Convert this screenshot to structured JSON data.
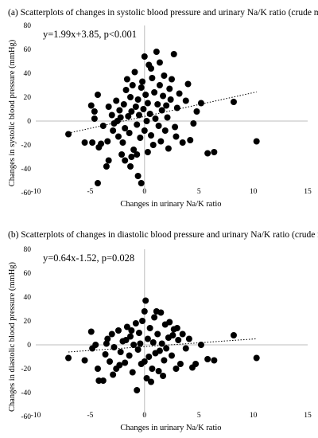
{
  "chart_data": [
    {
      "type": "scatter",
      "title": "(a) Scatterplots of changes in systolic blood pressure and urinary Na/K ratio (crude model).",
      "xlabel": "Changes in urinary Na/K ratio",
      "ylabel": "Changes in systolic blood pressure (mmHg)",
      "xlim": [
        -10,
        15
      ],
      "ylim": [
        -60,
        80
      ],
      "xticks": [
        "-10",
        "-5",
        "0",
        "5",
        "10",
        "15"
      ],
      "yticks": [
        "-60",
        "-40",
        "-20",
        "0",
        "20",
        "40",
        "60",
        "80"
      ],
      "annotation": "y=1.99x+3.85, p<0.001",
      "trendline": {
        "slope": 1.99,
        "intercept": 3.85,
        "x_range": [
          -7,
          10.3
        ],
        "style": "dotted"
      },
      "grid": false,
      "points": [
        [
          -7.0,
          -11
        ],
        [
          -5.5,
          -18
        ],
        [
          -4.8,
          -18
        ],
        [
          -4.9,
          13
        ],
        [
          -4.6,
          8
        ],
        [
          -4.3,
          22
        ],
        [
          -4.3,
          -52
        ],
        [
          -4.6,
          2
        ],
        [
          -4.2,
          -22
        ],
        [
          -4.0,
          -19
        ],
        [
          -3.5,
          -38
        ],
        [
          -3.3,
          -33
        ],
        [
          -3.4,
          -17
        ],
        [
          -3.3,
          12
        ],
        [
          -3.0,
          5
        ],
        [
          -2.9,
          -8
        ],
        [
          -2.8,
          -2
        ],
        [
          -2.6,
          17
        ],
        [
          -2.4,
          -13
        ],
        [
          -2.3,
          9
        ],
        [
          -2.2,
          3
        ],
        [
          -2.1,
          -28
        ],
        [
          -2.0,
          -18
        ],
        [
          -1.9,
          14
        ],
        [
          -1.8,
          -6
        ],
        [
          -1.7,
          26
        ],
        [
          -1.6,
          35
        ],
        [
          -1.5,
          4
        ],
        [
          -1.4,
          -10
        ],
        [
          -1.3,
          20
        ],
        [
          -1.3,
          -38
        ],
        [
          -1.2,
          8
        ],
        [
          -1.1,
          30
        ],
        [
          -1.0,
          -24
        ],
        [
          -0.9,
          41
        ],
        [
          -0.8,
          12
        ],
        [
          -0.7,
          -3
        ],
        [
          -0.6,
          -46
        ],
        [
          -0.6,
          18
        ],
        [
          -0.5,
          5
        ],
        [
          -0.4,
          -14
        ],
        [
          -0.3,
          28
        ],
        [
          -0.3,
          -52
        ],
        [
          -0.2,
          33
        ],
        [
          -0.1,
          10
        ],
        [
          0.0,
          54
        ],
        [
          0.0,
          -8
        ],
        [
          0.1,
          22
        ],
        [
          0.2,
          0
        ],
        [
          0.3,
          15
        ],
        [
          0.3,
          -26
        ],
        [
          0.4,
          47
        ],
        [
          0.5,
          6
        ],
        [
          0.6,
          -12
        ],
        [
          0.7,
          36
        ],
        [
          0.8,
          -20
        ],
        [
          0.9,
          24
        ],
        [
          1.0,
          2
        ],
        [
          1.1,
          58
        ],
        [
          1.2,
          14
        ],
        [
          1.3,
          -4
        ],
        [
          1.4,
          30
        ],
        [
          1.5,
          -17
        ],
        [
          1.6,
          9
        ],
        [
          1.7,
          21
        ],
        [
          1.8,
          38
        ],
        [
          1.9,
          -8
        ],
        [
          2.0,
          13
        ],
        [
          2.1,
          3
        ],
        [
          2.2,
          -23
        ],
        [
          2.3,
          27
        ],
        [
          2.4,
          18
        ],
        [
          2.5,
          35
        ],
        [
          2.7,
          56
        ],
        [
          2.8,
          -5
        ],
        [
          3.0,
          11
        ],
        [
          3.2,
          23
        ],
        [
          3.5,
          -18
        ],
        [
          3.8,
          17
        ],
        [
          4.0,
          31
        ],
        [
          4.2,
          -16
        ],
        [
          4.5,
          -2
        ],
        [
          4.8,
          8
        ],
        [
          5.2,
          15
        ],
        [
          5.8,
          -27
        ],
        [
          6.4,
          -26
        ],
        [
          8.2,
          16
        ],
        [
          10.3,
          -17
        ],
        [
          -2.5,
          0
        ],
        [
          -1.8,
          -33
        ],
        [
          -0.7,
          -28
        ],
        [
          0.6,
          44
        ],
        [
          1.4,
          49
        ],
        [
          -1.2,
          -30
        ],
        [
          2.9,
          -13
        ],
        [
          -3.8,
          -4
        ]
      ]
    },
    {
      "type": "scatter",
      "title": "(b) Scatterplots of changes in diastolic blood pressure and urinary Na/K ratio (crude model).",
      "xlabel": "Changes in urinary Na/K ratio",
      "ylabel": "Changes in diastolic blood pressure (mmHg)",
      "xlim": [
        -10,
        15
      ],
      "ylim": [
        -60,
        80
      ],
      "xticks": [
        "-10",
        "-5",
        "0",
        "5",
        "10",
        "15"
      ],
      "yticks": [
        "-60",
        "-40",
        "-20",
        "0",
        "20",
        "40",
        "60",
        "80"
      ],
      "annotation": "y=0.64x-1.52, p=0.028",
      "trendline": {
        "slope": 0.64,
        "intercept": -1.52,
        "x_range": [
          -7,
          10.3
        ],
        "style": "dotted"
      },
      "grid": false,
      "points": [
        [
          -7.0,
          -11
        ],
        [
          -5.5,
          -13
        ],
        [
          -4.9,
          11
        ],
        [
          -4.8,
          -3
        ],
        [
          -4.5,
          0
        ],
        [
          -4.3,
          -20
        ],
        [
          -4.2,
          -30
        ],
        [
          -3.8,
          -30
        ],
        [
          -3.6,
          -8
        ],
        [
          -3.4,
          5
        ],
        [
          -3.2,
          -14
        ],
        [
          -3.0,
          9
        ],
        [
          -2.8,
          -2
        ],
        [
          -2.6,
          -20
        ],
        [
          -2.4,
          12
        ],
        [
          -2.2,
          -6
        ],
        [
          -2.0,
          3
        ],
        [
          -1.8,
          -15
        ],
        [
          -1.6,
          15
        ],
        [
          -1.4,
          -9
        ],
        [
          -1.3,
          7
        ],
        [
          -1.1,
          -23
        ],
        [
          -1.0,
          0
        ],
        [
          -0.8,
          18
        ],
        [
          -0.7,
          -38
        ],
        [
          -0.6,
          -4
        ],
        [
          -0.5,
          10
        ],
        [
          -0.3,
          -16
        ],
        [
          -0.2,
          20
        ],
        [
          0.0,
          28
        ],
        [
          0.1,
          37
        ],
        [
          0.2,
          -28
        ],
        [
          0.3,
          5
        ],
        [
          0.4,
          -10
        ],
        [
          0.5,
          14
        ],
        [
          0.6,
          -31
        ],
        [
          0.8,
          2
        ],
        [
          0.9,
          23
        ],
        [
          1.0,
          -7
        ],
        [
          1.1,
          28
        ],
        [
          1.2,
          9
        ],
        [
          1.3,
          -22
        ],
        [
          1.5,
          27
        ],
        [
          1.6,
          1
        ],
        [
          1.8,
          -13
        ],
        [
          1.9,
          17
        ],
        [
          2.0,
          -3
        ],
        [
          2.2,
          6
        ],
        [
          2.3,
          19
        ],
        [
          2.5,
          -9
        ],
        [
          2.7,
          13
        ],
        [
          2.9,
          -20
        ],
        [
          3.1,
          4
        ],
        [
          3.3,
          -16
        ],
        [
          3.5,
          9
        ],
        [
          3.8,
          -3
        ],
        [
          4.1,
          5
        ],
        [
          4.4,
          -19
        ],
        [
          4.7,
          -16
        ],
        [
          5.2,
          0
        ],
        [
          5.8,
          -12
        ],
        [
          6.4,
          -13
        ],
        [
          8.2,
          8
        ],
        [
          10.3,
          -11
        ],
        [
          -2.9,
          -25
        ],
        [
          -1.7,
          4
        ],
        [
          -0.4,
          1
        ],
        [
          0.7,
          -20
        ],
        [
          1.4,
          -5
        ],
        [
          2.6,
          8
        ],
        [
          -3.5,
          1
        ],
        [
          3.0,
          14
        ],
        [
          -1.2,
          12
        ],
        [
          0.0,
          -14
        ],
        [
          1.7,
          -26
        ],
        [
          -2.3,
          -17
        ]
      ]
    }
  ]
}
